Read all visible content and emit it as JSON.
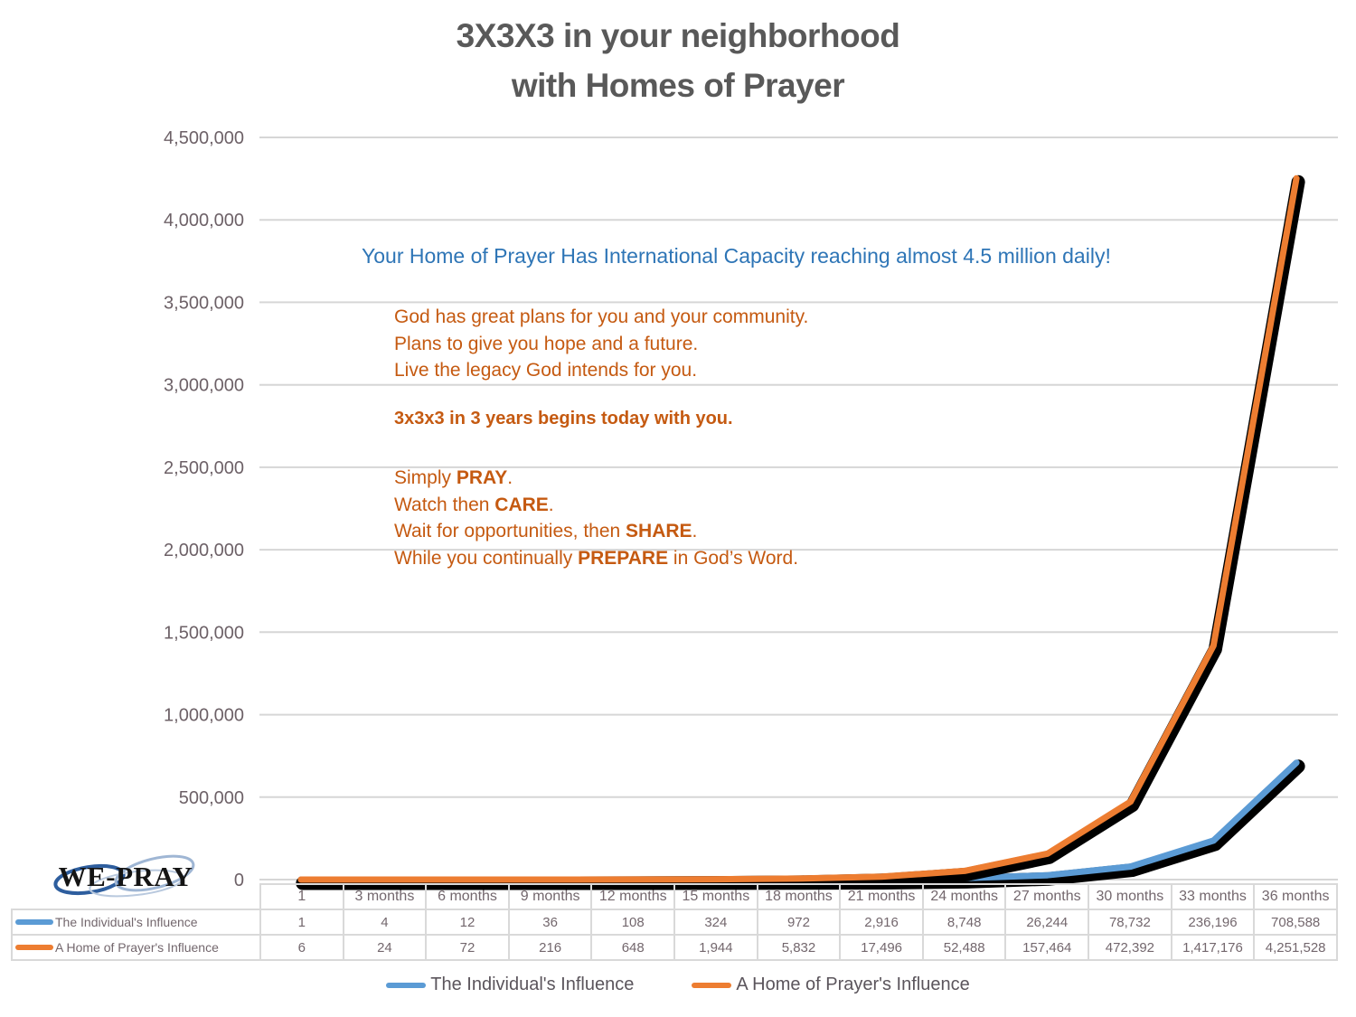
{
  "title": {
    "line1": "3X3X3 in your neighborhood",
    "line2": "with Homes of Prayer"
  },
  "annotations": {
    "capacity_note": "Your Home of Prayer Has International Capacity reaching almost 4.5 million daily!",
    "plans_lines": [
      "God has great plans for you and your community.",
      "Plans to give you hope and a future.",
      "Live the legacy God intends for you."
    ],
    "begin_line": "3x3x3 in 3 years begins today with you.",
    "steps": [
      {
        "pre": "Simply ",
        "bold": "PRAY",
        "post": "."
      },
      {
        "pre": "Watch then ",
        "bold": "CARE",
        "post": "."
      },
      {
        "pre": "Wait for opportunities, then ",
        "bold": "SHARE",
        "post": "."
      },
      {
        "pre": "While you continually ",
        "bold": "PREPARE",
        "post": " in God’s Word."
      }
    ]
  },
  "logo": {
    "text": "WE-PRAY"
  },
  "colors": {
    "blue": "#5B9BD5",
    "orange": "#ED7D31",
    "blue_text": "#2E75B6",
    "orange_text": "#C55A11",
    "title_gray": "#595959",
    "axis_gray": "#6d6167",
    "grid": "#D6D6D6",
    "table_border": "#D9D9D9",
    "shadow": "#000000"
  },
  "chart_data": {
    "type": "line",
    "title": "3X3X3 in your neighborhood with Homes of Prayer",
    "categories": [
      "1",
      "3 months",
      "6 months",
      "9 months",
      "12 months",
      "15 months",
      "18 months",
      "21 months",
      "24 months",
      "27 months",
      "30 months",
      "33 months",
      "36 months"
    ],
    "series": [
      {
        "name": "The Individual's Influence",
        "color": "#5B9BD5",
        "values": [
          1,
          4,
          12,
          36,
          108,
          324,
          972,
          2916,
          8748,
          26244,
          78732,
          236196,
          708588
        ]
      },
      {
        "name": "A Home of Prayer's Influence",
        "color": "#ED7D31",
        "values": [
          6,
          24,
          72,
          216,
          648,
          1944,
          5832,
          17496,
          52488,
          157464,
          472392,
          1417176,
          4251528
        ]
      }
    ],
    "xlabel": "",
    "ylabel": "",
    "ylim": [
      0,
      4500000
    ],
    "ytick_step": 500000,
    "grid": true,
    "legend_position": "bottom"
  }
}
